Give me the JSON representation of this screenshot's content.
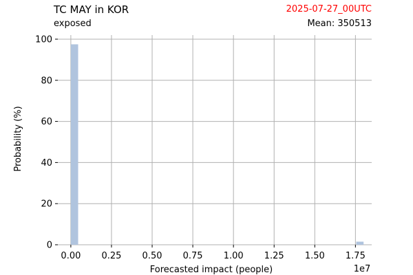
{
  "header": {
    "title": "TC MAY in KOR",
    "subtitle": "exposed",
    "date": "2025-07-27_00UTC",
    "mean_text": "Mean: 350513"
  },
  "colors": {
    "bar": "#b0c4de",
    "date": "#ff0000",
    "grid": "#b0b0b0"
  },
  "chart_data": {
    "type": "bar",
    "title": "TC MAY in KOR",
    "subtitle": "exposed",
    "xlabel": "Forecasted impact (people)",
    "ylabel": "Probability (%)",
    "x_scale_label": "1e7",
    "xlim": [
      -0.08,
      1.85
    ],
    "ylim": [
      0,
      102
    ],
    "x_ticks": [
      0.0,
      0.25,
      0.5,
      0.75,
      1.0,
      1.25,
      1.5,
      1.75
    ],
    "x_tick_labels": [
      "0.00",
      "0.25",
      "0.50",
      "0.75",
      "1.00",
      "1.25",
      "1.50",
      "1.75"
    ],
    "y_ticks": [
      0,
      20,
      40,
      60,
      80,
      100
    ],
    "y_tick_labels": [
      "0",
      "20",
      "40",
      "60",
      "80",
      "100"
    ],
    "bin_width": 0.045,
    "bars": [
      {
        "x": 0.0,
        "value": 97.5
      },
      {
        "x": 1.755,
        "value": 1.5
      }
    ],
    "grid": true,
    "legend": "none"
  }
}
